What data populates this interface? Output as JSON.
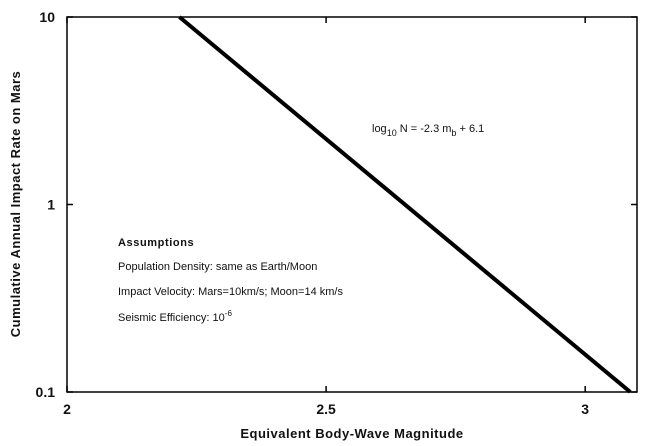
{
  "chart_data": {
    "type": "line",
    "xlabel": "Equivalent Body-Wave Magnitude",
    "ylabel": "Cumulative Annual Impact Rate on Mars",
    "x": [
      2.217,
      3.087
    ],
    "series": [
      {
        "color": "#000000",
        "values": [
          10,
          0.1
        ]
      }
    ],
    "xlim": [
      2,
      3.1
    ],
    "xticks": [
      2,
      2.5,
      3
    ],
    "ylim": [
      0.1,
      10
    ],
    "yticks": [
      10,
      1,
      0.1
    ],
    "ylog": true,
    "equation": [
      "log",
      "10",
      " N = -2.3 m",
      "b",
      " + 6.1"
    ],
    "assumptions": {
      "title": "Assumptions",
      "lines": [
        "Population Density: same as Earth/Moon",
        "Impact Velocity: Mars=10km/s; Moon=14 km/s"
      ],
      "efficiency": [
        "Seismic Efficiency: 10",
        "-6"
      ]
    }
  }
}
